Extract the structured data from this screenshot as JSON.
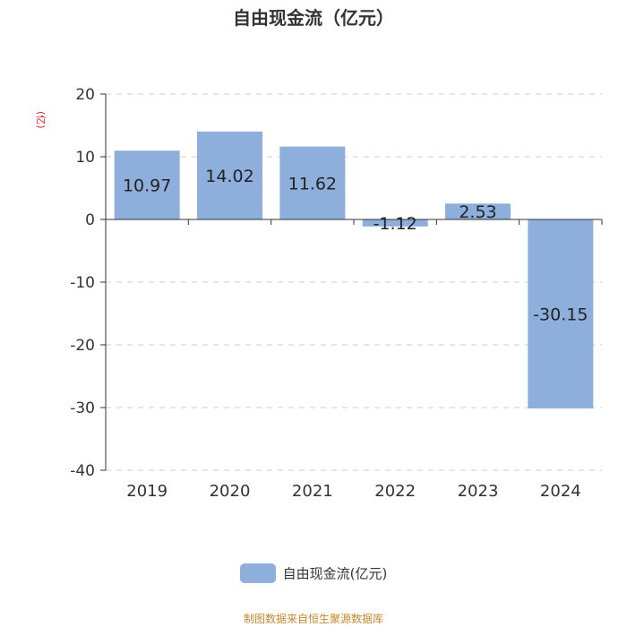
{
  "chart_data": {
    "type": "bar",
    "title": "自由现金流（亿元）",
    "ylabel": "(亿)",
    "categories": [
      "2019",
      "2020",
      "2021",
      "2022",
      "2023",
      "2024"
    ],
    "series": [
      {
        "name": "自由现金流(亿元)",
        "values": [
          10.97,
          14.02,
          11.62,
          -1.12,
          2.53,
          -30.15
        ]
      }
    ],
    "data_labels": [
      "10.97",
      "14.02",
      "11.62",
      "-1.12",
      "2.53",
      "-30.15"
    ],
    "yticks": [
      20,
      10,
      0,
      -10,
      -20,
      -30,
      -40
    ],
    "ylim": [
      -40,
      20
    ],
    "grid": true,
    "legend": "bottom-center",
    "bar_color": "#8eafdc"
  },
  "footer": {
    "source": "制图数据来自恒生聚源数据库"
  }
}
